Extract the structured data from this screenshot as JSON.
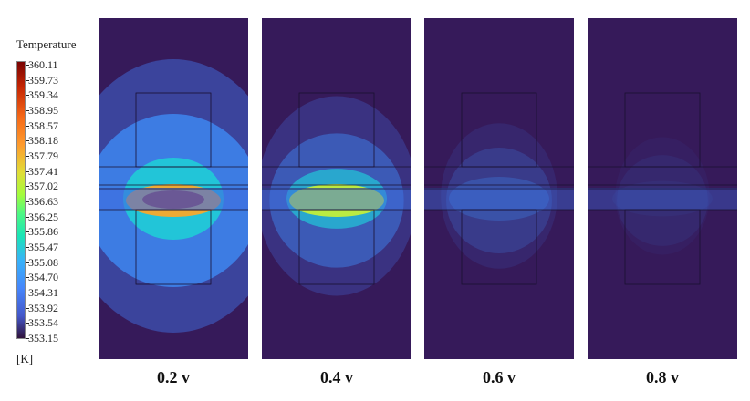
{
  "legend": {
    "title": "Temperature",
    "unit": "[K]",
    "ticks": [
      "360.11",
      "359.73",
      "359.34",
      "358.95",
      "358.57",
      "358.18",
      "357.79",
      "357.41",
      "357.02",
      "356.63",
      "356.25",
      "355.86",
      "355.47",
      "355.08",
      "354.70",
      "354.31",
      "353.92",
      "353.54",
      "353.15"
    ]
  },
  "panels": [
    {
      "label": "0.2 v",
      "intensity": 1.0
    },
    {
      "label": "0.4 v",
      "intensity": 0.55
    },
    {
      "label": "0.6 v",
      "intensity": 0.22
    },
    {
      "label": "0.8 v",
      "intensity": 0.05
    }
  ]
}
